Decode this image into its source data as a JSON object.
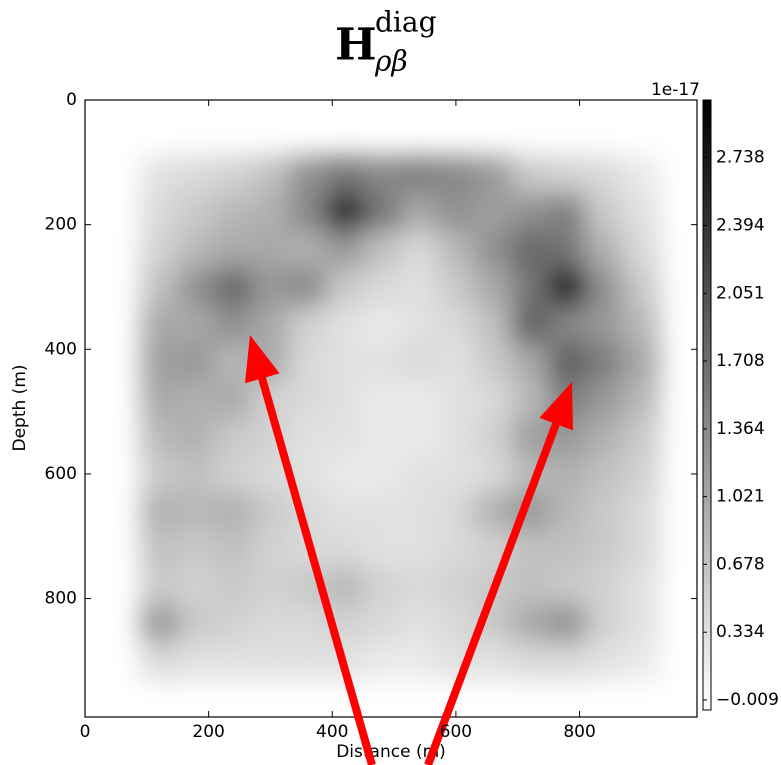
{
  "chart_data": {
    "type": "heatmap",
    "title": {
      "base": "H",
      "sub": "ρβ",
      "sup": "diag"
    },
    "x_label": "Distance (m)",
    "y_label": "Depth (m)",
    "xlim": [
      0,
      990
    ],
    "ylim": [
      990,
      0
    ],
    "xticks": [
      0,
      200,
      400,
      600,
      800
    ],
    "yticks": [
      0,
      200,
      400,
      600,
      800
    ],
    "x": [
      120,
      180,
      240,
      300,
      360,
      420,
      480,
      540,
      600,
      660,
      720,
      780,
      840,
      900
    ],
    "y": [
      120,
      180,
      240,
      300,
      360,
      420,
      480,
      540,
      600,
      660,
      720,
      780,
      840,
      900
    ],
    "z": [
      [
        0.3,
        0.4,
        0.5,
        0.7,
        1.3,
        1.6,
        1.4,
        1.5,
        1.4,
        1.2,
        0.6,
        0.5,
        0.4,
        0.2
      ],
      [
        0.4,
        0.6,
        0.8,
        0.9,
        1.4,
        2.7,
        1.6,
        1.0,
        1.3,
        1.1,
        1.3,
        1.5,
        0.6,
        0.3
      ],
      [
        0.5,
        0.8,
        1.0,
        1.0,
        0.9,
        1.2,
        0.7,
        0.4,
        0.8,
        1.3,
        1.8,
        1.6,
        0.9,
        0.4
      ],
      [
        0.7,
        1.3,
        1.8,
        1.2,
        1.4,
        0.6,
        0.4,
        0.3,
        0.6,
        1.0,
        1.6,
        2.9,
        1.3,
        0.6
      ],
      [
        1.0,
        1.0,
        1.3,
        1.0,
        0.5,
        0.3,
        0.2,
        0.3,
        0.4,
        0.7,
        1.9,
        1.4,
        1.2,
        0.8
      ],
      [
        1.1,
        1.2,
        0.8,
        1.0,
        0.4,
        0.3,
        0.3,
        0.4,
        0.3,
        0.6,
        1.0,
        1.9,
        1.5,
        1.0
      ],
      [
        1.0,
        0.9,
        1.0,
        0.5,
        0.4,
        0.3,
        0.2,
        0.2,
        0.3,
        0.4,
        0.8,
        1.5,
        1.2,
        0.8
      ],
      [
        0.8,
        0.9,
        0.6,
        0.5,
        0.3,
        0.3,
        0.2,
        0.2,
        0.3,
        0.5,
        1.1,
        1.2,
        0.9,
        0.6
      ],
      [
        0.6,
        0.7,
        0.5,
        0.4,
        0.3,
        0.2,
        0.2,
        0.3,
        0.3,
        0.4,
        0.8,
        0.9,
        0.7,
        0.5
      ],
      [
        0.9,
        0.8,
        0.9,
        0.6,
        0.4,
        0.3,
        0.3,
        0.3,
        0.4,
        0.9,
        1.2,
        0.8,
        0.6,
        0.4
      ],
      [
        0.7,
        0.6,
        0.7,
        0.5,
        0.4,
        0.4,
        0.3,
        0.3,
        0.4,
        0.5,
        0.7,
        0.7,
        0.6,
        0.4
      ],
      [
        0.6,
        0.5,
        0.6,
        0.5,
        0.6,
        0.8,
        0.5,
        0.4,
        0.5,
        0.6,
        0.7,
        0.6,
        0.5,
        0.3
      ],
      [
        1.2,
        0.6,
        0.5,
        0.4,
        0.4,
        0.5,
        0.4,
        0.3,
        0.4,
        0.6,
        1.0,
        1.3,
        0.5,
        0.3
      ],
      [
        0.4,
        0.3,
        0.3,
        0.3,
        0.3,
        0.3,
        0.2,
        0.2,
        0.3,
        0.3,
        0.4,
        0.4,
        0.3,
        0.2
      ]
    ],
    "colormap": "gray_r",
    "clim": [
      -0.06,
      3.03
    ],
    "cticks": [
      {
        "value": -0.009,
        "label": "−0.009"
      },
      0.334,
      0.678,
      1.021,
      1.364,
      1.708,
      2.051,
      2.394,
      2.738
    ],
    "colorbar_offset": "1e-17"
  }
}
